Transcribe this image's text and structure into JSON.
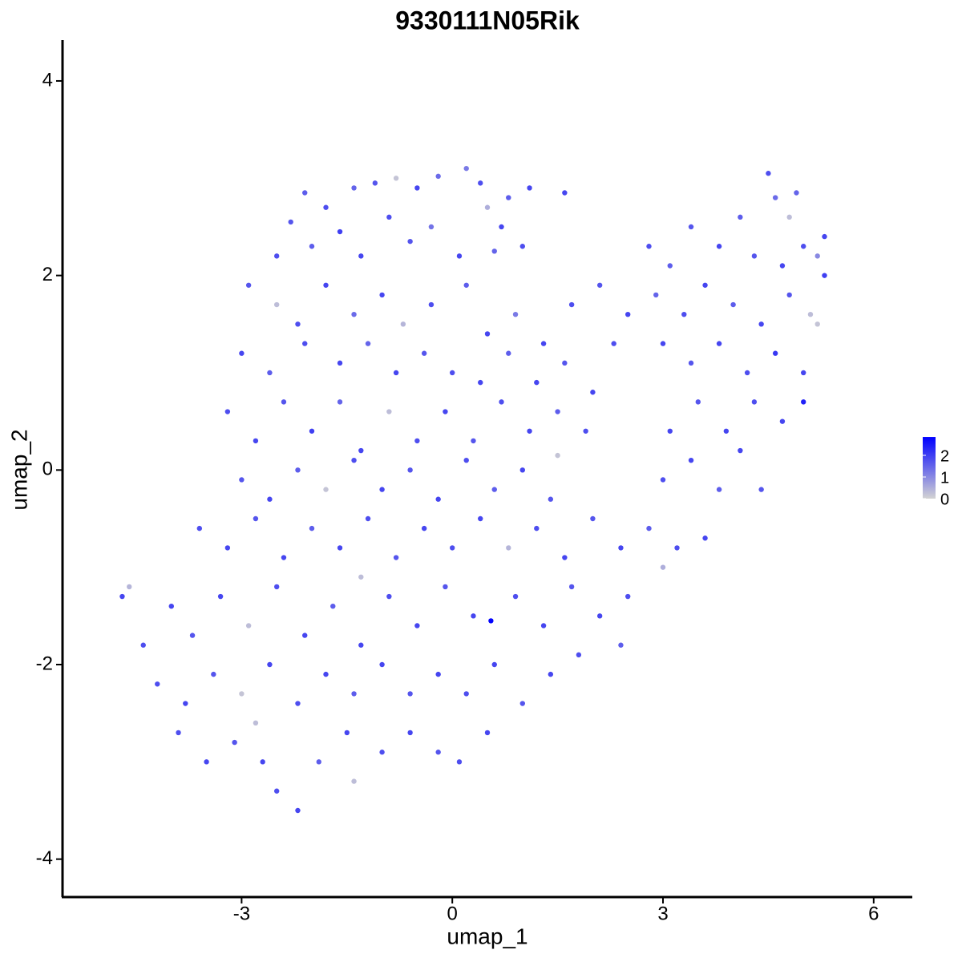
{
  "chart_data": {
    "type": "scatter",
    "title": "9330111N05Rik",
    "x_label": "umap_1",
    "y_label": "umap_2",
    "xlim": [
      -5.55,
      6.55
    ],
    "ylim": [
      -4.39,
      4.42
    ],
    "xticks": [
      -3,
      0,
      3,
      6
    ],
    "yticks": [
      -4,
      -2,
      0,
      2,
      4
    ],
    "color_low": "#d3d3d3",
    "color_high": "#0000ff",
    "color_lim": [
      0,
      2.85
    ],
    "color_ticks": [
      0,
      1,
      2
    ],
    "points": [
      [
        -2.1,
        2.85,
        1.6
      ],
      [
        -1.8,
        2.7,
        1.8
      ],
      [
        -1.4,
        2.9,
        1.5
      ],
      [
        -1.1,
        2.95,
        1.7
      ],
      [
        -0.8,
        3.0,
        0.2
      ],
      [
        -0.5,
        2.9,
        1.9
      ],
      [
        -0.2,
        3.02,
        1.4
      ],
      [
        0.2,
        3.1,
        1.2
      ],
      [
        0.4,
        2.95,
        1.8
      ],
      [
        0.8,
        2.8,
        1.6
      ],
      [
        1.1,
        2.9,
        1.9
      ],
      [
        -2.3,
        2.55,
        1.7
      ],
      [
        -1.6,
        2.45,
        2.0
      ],
      [
        -0.9,
        2.6,
        1.8
      ],
      [
        -0.3,
        2.5,
        1.3
      ],
      [
        0.5,
        2.7,
        0.5
      ],
      [
        0.7,
        2.5,
        1.9
      ],
      [
        -2.5,
        2.2,
        1.8
      ],
      [
        -2.0,
        2.3,
        1.6
      ],
      [
        -1.3,
        2.2,
        1.9
      ],
      [
        -0.6,
        2.35,
        1.7
      ],
      [
        0.1,
        2.2,
        1.9
      ],
      [
        0.6,
        2.25,
        1.5
      ],
      [
        1.0,
        2.3,
        1.8
      ],
      [
        1.6,
        2.85,
        1.9
      ],
      [
        -2.9,
        1.9,
        1.7
      ],
      [
        -2.5,
        1.7,
        0.3
      ],
      [
        -2.2,
        1.5,
        1.8
      ],
      [
        -1.8,
        1.9,
        1.9
      ],
      [
        -1.4,
        1.6,
        1.4
      ],
      [
        -1.0,
        1.8,
        1.9
      ],
      [
        -0.7,
        1.5,
        0.4
      ],
      [
        -0.3,
        1.7,
        1.8
      ],
      [
        0.2,
        1.9,
        1.6
      ],
      [
        0.5,
        1.4,
        1.9
      ],
      [
        0.9,
        1.6,
        1.2
      ],
      [
        1.3,
        1.3,
        1.9
      ],
      [
        1.7,
        1.7,
        1.8
      ],
      [
        2.1,
        1.9,
        1.7
      ],
      [
        2.5,
        1.6,
        1.9
      ],
      [
        2.9,
        1.8,
        1.5
      ],
      [
        3.3,
        1.6,
        1.8
      ],
      [
        3.6,
        1.9,
        1.9
      ],
      [
        4.0,
        1.7,
        1.6
      ],
      [
        4.4,
        1.5,
        1.9
      ],
      [
        4.8,
        1.8,
        1.7
      ],
      [
        5.1,
        1.6,
        0.3
      ],
      [
        5.3,
        2.0,
        2.0
      ],
      [
        -3.0,
        1.2,
        1.9
      ],
      [
        -2.6,
        1.0,
        1.6
      ],
      [
        -2.1,
        1.3,
        1.8
      ],
      [
        -1.6,
        1.1,
        1.9
      ],
      [
        -1.2,
        1.3,
        1.5
      ],
      [
        -0.8,
        1.0,
        1.9
      ],
      [
        -0.4,
        1.2,
        1.7
      ],
      [
        0.0,
        1.0,
        1.8
      ],
      [
        0.4,
        0.9,
        1.9
      ],
      [
        0.8,
        1.2,
        1.6
      ],
      [
        1.2,
        0.9,
        1.9
      ],
      [
        1.6,
        1.1,
        1.7
      ],
      [
        2.0,
        0.8,
        1.9
      ],
      [
        2.3,
        1.3,
        1.8
      ],
      [
        3.0,
        1.3,
        1.9
      ],
      [
        3.4,
        1.1,
        1.7
      ],
      [
        3.8,
        1.3,
        1.9
      ],
      [
        4.2,
        1.0,
        1.8
      ],
      [
        4.6,
        1.2,
        2.1
      ],
      [
        5.0,
        1.0,
        1.9
      ],
      [
        5.2,
        1.5,
        0.2
      ],
      [
        3.4,
        2.5,
        1.7
      ],
      [
        3.8,
        2.3,
        1.9
      ],
      [
        4.1,
        2.6,
        1.6
      ],
      [
        4.5,
        3.05,
        1.8
      ],
      [
        4.6,
        2.8,
        1.4
      ],
      [
        4.8,
        2.6,
        0.3
      ],
      [
        5.0,
        2.3,
        1.8
      ],
      [
        5.3,
        2.4,
        1.9
      ],
      [
        4.3,
        2.2,
        1.7
      ],
      [
        4.7,
        2.1,
        1.9
      ],
      [
        2.8,
        2.3,
        1.8
      ],
      [
        3.1,
        2.1,
        1.6
      ],
      [
        5.2,
        2.2,
        1.0
      ],
      [
        4.9,
        2.85,
        1.5
      ],
      [
        -3.2,
        0.6,
        1.8
      ],
      [
        -2.8,
        0.3,
        1.9
      ],
      [
        -2.4,
        0.7,
        1.7
      ],
      [
        -2.0,
        0.4,
        2.0
      ],
      [
        -1.6,
        0.7,
        1.5
      ],
      [
        -1.3,
        0.2,
        1.9
      ],
      [
        -0.9,
        0.6,
        0.3
      ],
      [
        -0.5,
        0.3,
        1.8
      ],
      [
        -0.1,
        0.6,
        1.9
      ],
      [
        0.3,
        0.3,
        1.7
      ],
      [
        0.7,
        0.7,
        1.8
      ],
      [
        1.1,
        0.4,
        1.9
      ],
      [
        1.5,
        0.6,
        1.6
      ],
      [
        1.9,
        0.4,
        1.8
      ],
      [
        3.1,
        0.4,
        1.9
      ],
      [
        3.5,
        0.7,
        1.7
      ],
      [
        3.9,
        0.4,
        1.9
      ],
      [
        4.3,
        0.7,
        1.8
      ],
      [
        4.7,
        0.5,
        1.9
      ],
      [
        5.0,
        0.7,
        2.4
      ],
      [
        -3.0,
        -0.1,
        1.7
      ],
      [
        -2.6,
        -0.3,
        1.9
      ],
      [
        -2.2,
        0.0,
        1.6
      ],
      [
        -1.8,
        -0.2,
        0.2
      ],
      [
        -1.4,
        0.1,
        1.8
      ],
      [
        -1.0,
        -0.2,
        1.9
      ],
      [
        -0.6,
        0.0,
        1.7
      ],
      [
        -0.2,
        -0.3,
        1.9
      ],
      [
        0.2,
        0.1,
        1.8
      ],
      [
        0.6,
        -0.2,
        1.6
      ],
      [
        1.0,
        0.0,
        1.9
      ],
      [
        1.4,
        -0.3,
        1.7
      ],
      [
        1.5,
        0.15,
        0.2
      ],
      [
        3.0,
        -0.1,
        1.8
      ],
      [
        3.4,
        0.1,
        1.9
      ],
      [
        3.8,
        -0.2,
        1.6
      ],
      [
        4.1,
        0.2,
        1.9
      ],
      [
        4.4,
        -0.2,
        1.7
      ],
      [
        -3.6,
        -0.6,
        1.8
      ],
      [
        -3.2,
        -0.8,
        1.9
      ],
      [
        -2.8,
        -0.5,
        1.7
      ],
      [
        -2.4,
        -0.9,
        1.9
      ],
      [
        -2.0,
        -0.6,
        1.6
      ],
      [
        -1.6,
        -0.8,
        1.9
      ],
      [
        -1.2,
        -0.5,
        1.8
      ],
      [
        -0.8,
        -0.9,
        1.7
      ],
      [
        -0.4,
        -0.6,
        1.9
      ],
      [
        0.0,
        -0.8,
        1.8
      ],
      [
        0.4,
        -0.5,
        1.9
      ],
      [
        0.8,
        -0.8,
        0.4
      ],
      [
        1.2,
        -0.6,
        1.8
      ],
      [
        1.6,
        -0.9,
        1.9
      ],
      [
        2.0,
        -0.5,
        1.7
      ],
      [
        2.4,
        -0.8,
        1.9
      ],
      [
        2.8,
        -0.6,
        1.6
      ],
      [
        3.2,
        -0.8,
        1.8
      ],
      [
        3.6,
        -0.7,
        1.9
      ],
      [
        -1.3,
        -1.1,
        0.3
      ],
      [
        3.0,
        -1.0,
        0.5
      ],
      [
        -4.6,
        -1.2,
        0.4
      ],
      [
        -4.4,
        -1.8,
        1.8
      ],
      [
        -4.0,
        -1.4,
        1.9
      ],
      [
        -3.7,
        -1.7,
        1.7
      ],
      [
        -3.3,
        -1.3,
        1.9
      ],
      [
        -2.9,
        -1.6,
        0.3
      ],
      [
        -2.5,
        -1.2,
        1.8
      ],
      [
        -2.1,
        -1.7,
        1.9
      ],
      [
        -1.7,
        -1.4,
        1.6
      ],
      [
        -1.3,
        -1.8,
        1.9
      ],
      [
        -0.9,
        -1.3,
        1.8
      ],
      [
        -0.5,
        -1.6,
        1.9
      ],
      [
        -0.1,
        -1.2,
        1.7
      ],
      [
        0.3,
        -1.5,
        1.9
      ],
      [
        0.55,
        -1.55,
        2.8
      ],
      [
        0.9,
        -1.3,
        1.8
      ],
      [
        1.3,
        -1.6,
        1.9
      ],
      [
        1.7,
        -1.2,
        1.7
      ],
      [
        2.1,
        -1.5,
        1.9
      ],
      [
        2.5,
        -1.3,
        1.8
      ],
      [
        2.4,
        -1.8,
        1.6
      ],
      [
        -4.2,
        -2.2,
        1.8
      ],
      [
        -3.8,
        -2.4,
        1.9
      ],
      [
        -3.4,
        -2.1,
        1.7
      ],
      [
        -3.0,
        -2.3,
        0.2
      ],
      [
        -2.6,
        -2.0,
        1.9
      ],
      [
        -2.2,
        -2.4,
        1.8
      ],
      [
        -1.8,
        -2.1,
        1.9
      ],
      [
        -1.4,
        -2.3,
        1.6
      ],
      [
        -1.0,
        -2.0,
        1.9
      ],
      [
        -0.6,
        -2.3,
        1.7
      ],
      [
        -0.2,
        -2.1,
        1.9
      ],
      [
        0.2,
        -2.3,
        1.8
      ],
      [
        0.6,
        -2.0,
        1.9
      ],
      [
        1.0,
        -2.4,
        1.7
      ],
      [
        1.4,
        -2.1,
        1.9
      ],
      [
        1.8,
        -1.9,
        1.8
      ],
      [
        -3.9,
        -2.7,
        1.8
      ],
      [
        -3.5,
        -3.0,
        1.9
      ],
      [
        -3.1,
        -2.8,
        1.7
      ],
      [
        -2.7,
        -3.0,
        1.9
      ],
      [
        -2.5,
        -3.3,
        1.8
      ],
      [
        -2.2,
        -3.5,
        1.9
      ],
      [
        -1.9,
        -3.0,
        1.6
      ],
      [
        -1.5,
        -2.7,
        1.9
      ],
      [
        -1.4,
        -3.2,
        0.3
      ],
      [
        -1.0,
        -2.9,
        1.8
      ],
      [
        -0.6,
        -2.7,
        1.9
      ],
      [
        -0.2,
        -2.9,
        1.7
      ],
      [
        0.1,
        -3.0,
        1.8
      ],
      [
        0.5,
        -2.7,
        1.9
      ],
      [
        -2.8,
        -2.6,
        0.3
      ],
      [
        -4.7,
        -1.3,
        1.9
      ]
    ]
  }
}
